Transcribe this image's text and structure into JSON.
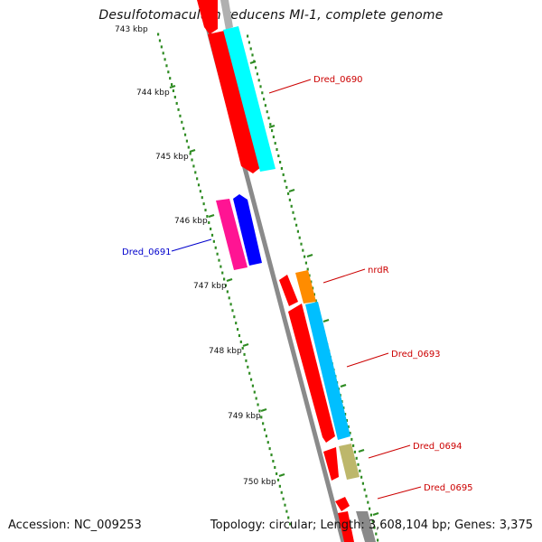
{
  "title": "Desulfotomaculum reducens MI-1, complete genome",
  "accession": "Accession: NC_009253",
  "stats": "Topology: circular; Length: 3,608,104 bp; Genes: 3,375",
  "colors": {
    "backbone": "#8a8a8a",
    "tick": "#2e8b22",
    "forward_label": "#cc0000",
    "reverse_label": "#0000cc",
    "cds_red": "#ff0000",
    "cds_cyan": "#00ffff",
    "cds_magenta": "#ff1493",
    "cds_blue": "#0000ff",
    "cds_orange": "#ff8c00",
    "cds_skyblue": "#00bfff",
    "cds_khaki": "#bdb76b"
  },
  "ticks": [
    "743 kbp",
    "744 kbp",
    "745 kbp",
    "746 kbp",
    "747 kbp",
    "748 kbp",
    "749 kbp",
    "750 kbp"
  ],
  "gene_labels": [
    {
      "text": "Dred_0690",
      "strand": "forward"
    },
    {
      "text": "Dred_0691",
      "strand": "reverse"
    },
    {
      "text": "nrdR",
      "strand": "forward"
    },
    {
      "text": "Dred_0693",
      "strand": "forward"
    },
    {
      "text": "Dred_0694",
      "strand": "forward"
    },
    {
      "text": "Dred_0695",
      "strand": "forward"
    }
  ]
}
